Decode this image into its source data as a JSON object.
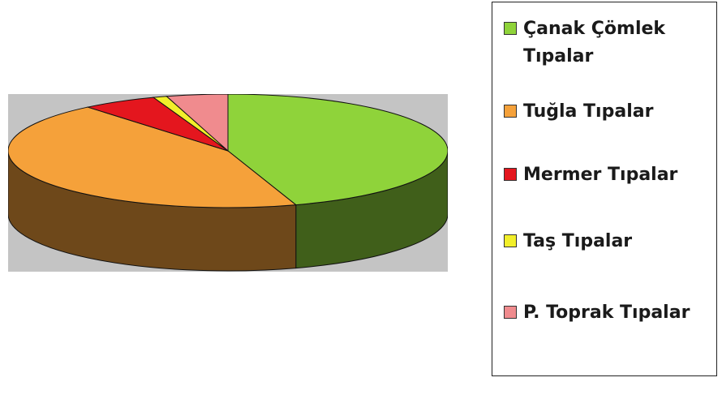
{
  "chart_data": {
    "type": "pie",
    "style": "3d",
    "categories": [
      "Çanak Çömlek Tıpalar",
      "Tuğla Tıpalar",
      "Mermer Tıpalar",
      "Taş Tıpalar",
      "P. Toprak Tıpalar"
    ],
    "values": [
      45,
      44,
      5.5,
      1,
      4.5
    ],
    "colors": [
      "#8fd33a",
      "#f5a13a",
      "#e4161e",
      "#f2ef2a",
      "#f08b8e"
    ],
    "legend_position": "right"
  },
  "legend": {
    "items": [
      {
        "label": "Çanak Çömlek\nTıpalar",
        "color": "#8fd33a"
      },
      {
        "label": "Tuğla Tıpalar",
        "color": "#f5a13a"
      },
      {
        "label": "Mermer Tıpalar",
        "color": "#e4161e"
      },
      {
        "label": "Taş Tıpalar",
        "color": "#f2ef2a"
      },
      {
        "label": "P. Toprak Tıpalar",
        "color": "#f08b8e"
      }
    ]
  }
}
